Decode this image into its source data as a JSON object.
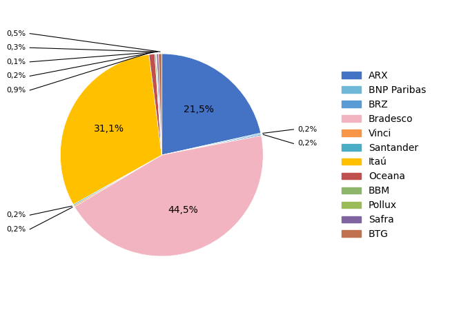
{
  "chart_data": {
    "type": "pie",
    "categories": [
      "ARX",
      "BNP Paribas",
      "BRZ",
      "Bradesco",
      "Vinci",
      "Santander",
      "Itaú",
      "Oceana",
      "BBM",
      "Pollux",
      "Safra",
      "BTG"
    ],
    "values": [
      21.5,
      0.2,
      0.2,
      44.5,
      0.2,
      0.2,
      31.1,
      0.9,
      0.2,
      0.1,
      0.3,
      0.5
    ],
    "value_labels": [
      "21,5%",
      "0,2%",
      "0,2%",
      "44,5%",
      "0,2%",
      "0,2%",
      "31,1%",
      "0,9%",
      "0,2%",
      "0,1%",
      "0,3%",
      "0,5%"
    ],
    "colors": [
      "#4472C4",
      "#70B8D8",
      "#5B9BD5",
      "#F2B4C0",
      "#F79646",
      "#4BACC6",
      "#FFC000",
      "#C0504D",
      "#8DB66B",
      "#9BBB59",
      "#8064A2",
      "#C0714F"
    ],
    "data_labels": true,
    "legend": "center left"
  }
}
